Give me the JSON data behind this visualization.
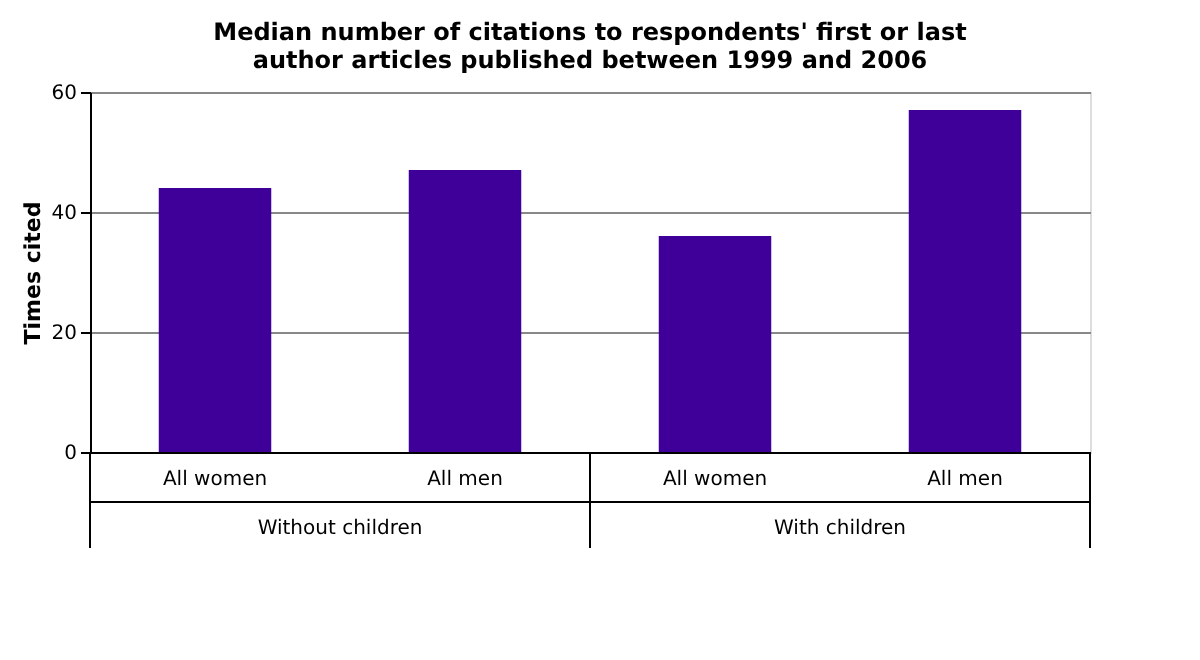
{
  "chart_data": {
    "type": "bar",
    "title": [
      "Median number of citations to respondents' first or last",
      "author articles published between 1999 and 2006"
    ],
    "ylabel": "Times cited",
    "categories": [
      "All women",
      "All men",
      "All women",
      "All men"
    ],
    "values": [
      44,
      47,
      36,
      57
    ],
    "color": "#3f0099",
    "annotations": [
      "Without children",
      "With children"
    ],
    "ylim": [
      0,
      60
    ],
    "yticks": [
      0,
      20,
      40,
      60
    ],
    "grid": "y"
  }
}
